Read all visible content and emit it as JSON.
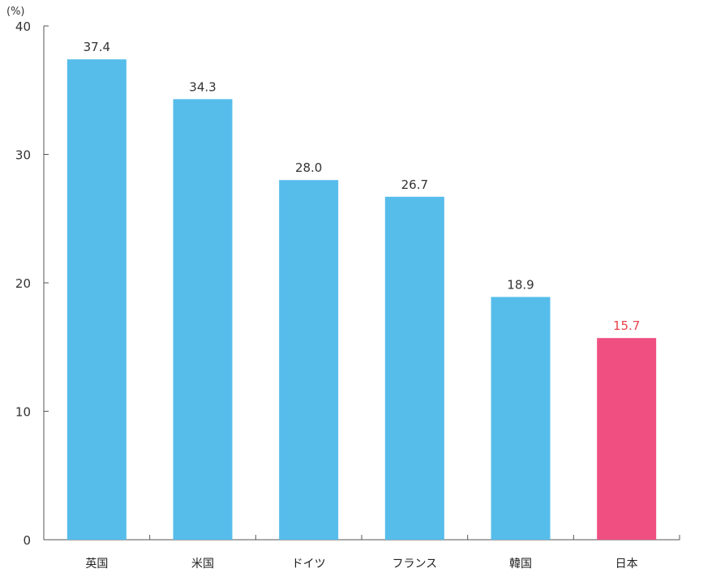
{
  "chart_data": {
    "type": "bar",
    "unit": "(%)",
    "categories": [
      "英国",
      "米国",
      "ドイツ",
      "フランス",
      "韓国",
      "日本"
    ],
    "values": [
      37.4,
      34.3,
      28.0,
      26.7,
      18.9,
      15.7
    ],
    "value_labels": [
      "37.4",
      "34.3",
      "28.0",
      "26.7",
      "18.9",
      "15.7"
    ],
    "highlight_index": 5,
    "ylim": [
      0,
      40
    ],
    "yticks": [
      0,
      10,
      20,
      30,
      40
    ],
    "grid": false,
    "legend": "none",
    "colors": {
      "bar": "#56BDEB",
      "highlight_bar": "#EF5081",
      "highlight_label": "#E8424A",
      "label": "#333333",
      "axis": "#555555"
    }
  }
}
